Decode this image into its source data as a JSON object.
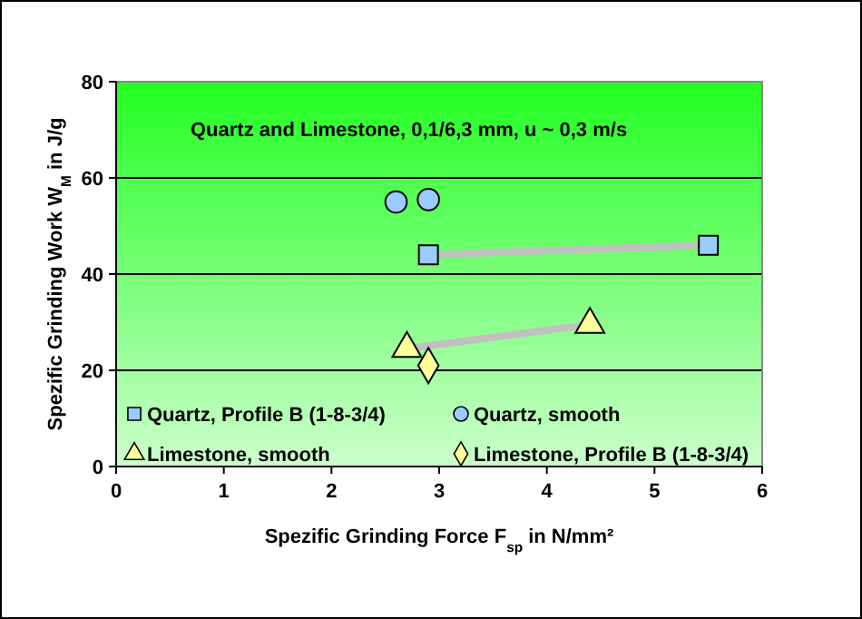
{
  "chart_data": {
    "type": "scatter",
    "xlabel": "Spezific Grinding Force F$_{sp}$ in N/mm²",
    "ylabel": "Spezific Grinding Work W$_{M}$ in J/g",
    "annotations": [
      "Quartz and Limestone, 0,1/6,3 mm, u ~ 0,3 m/s"
    ],
    "xlim": [
      0,
      6
    ],
    "xticks": [
      0,
      1,
      2,
      3,
      4,
      5,
      6
    ],
    "ylim": [
      0,
      80
    ],
    "yticks": [
      0,
      20,
      40,
      60,
      80
    ],
    "grid": "y",
    "legend": "bottom",
    "series": [
      {
        "type": "line",
        "color": "#c0c0c0",
        "marker": "none",
        "x": [
          2.9,
          5.5
        ],
        "values": [
          44,
          46
        ]
      },
      {
        "type": "line",
        "color": "#c0c0c0",
        "marker": "none",
        "x": [
          2.7,
          4.4
        ],
        "values": [
          24.5,
          29.5
        ]
      },
      {
        "name": "Quartz, Profile B (1-8-3/4)",
        "type": "scatter",
        "color": "#99ccff",
        "marker": "square",
        "x": [
          2.9,
          5.5
        ],
        "values": [
          44,
          46
        ]
      },
      {
        "name": "Quartz, smooth",
        "type": "scatter",
        "color": "#99ccff",
        "marker": "circle",
        "x": [
          2.6,
          2.9
        ],
        "values": [
          55,
          55.5
        ]
      },
      {
        "name": "Limestone, smooth",
        "type": "scatter",
        "color": "#ffff99",
        "marker": "triangle",
        "x": [
          2.7,
          4.4
        ],
        "values": [
          24.5,
          29.5
        ]
      },
      {
        "name": "Limestone, Profile B (1-8-3/4)",
        "type": "scatter",
        "color": "#ffff99",
        "marker": "diamond",
        "x": [
          2.9
        ],
        "values": [
          21
        ]
      }
    ]
  }
}
